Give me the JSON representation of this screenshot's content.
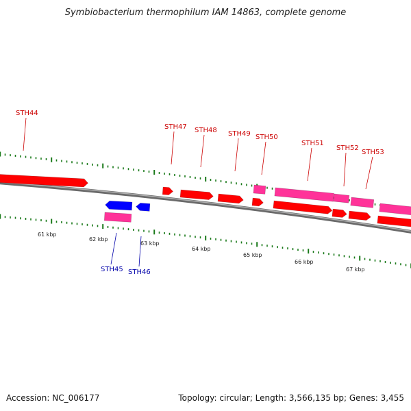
{
  "title": "Symbiobacterium thermophilum IAM 14863, complete genome",
  "accession_text": "Accession: NC_006177",
  "summary_text": "Topology: circular; Length: 3,566,135 bp; Genes: 3,455",
  "colors": {
    "forward_gene": "#ff0000",
    "reverse_gene": "#0000ff",
    "rna_feature": "#ff3399",
    "backbone": "#808080",
    "tick": "#1a7a1a",
    "forward_label": "#cc0000",
    "reverse_label": "#0000aa"
  },
  "scale_labels": [
    "61 kbp",
    "62 kbp",
    "63 kbp",
    "64 kbp",
    "65 kbp",
    "66 kbp",
    "67 kbp"
  ],
  "gene_labels": [
    {
      "name": "STH44",
      "strand": "forward"
    },
    {
      "name": "STH45",
      "strand": "reverse"
    },
    {
      "name": "STH46",
      "strand": "reverse"
    },
    {
      "name": "STH47",
      "strand": "forward"
    },
    {
      "name": "STH48",
      "strand": "forward"
    },
    {
      "name": "STH49",
      "strand": "forward"
    },
    {
      "name": "STH50",
      "strand": "forward"
    },
    {
      "name": "STH51",
      "strand": "forward"
    },
    {
      "name": "STH52",
      "strand": "forward"
    },
    {
      "name": "STH53",
      "strand": "forward"
    }
  ]
}
